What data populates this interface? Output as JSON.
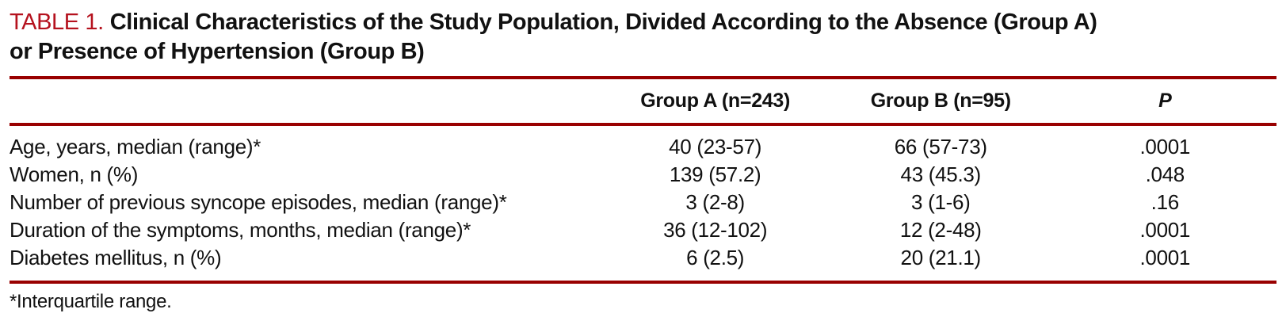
{
  "title": {
    "label": "TABLE 1.",
    "line1": "Clinical Characteristics of the Study Population, Divided According to the Absence (Group A)",
    "line2": "or Presence of Hypertension (Group B)"
  },
  "table": {
    "columns": [
      "",
      "Group A (n=243)",
      "Group B (n=95)",
      "P"
    ],
    "rows": [
      {
        "label": "Age, years, median (range)*",
        "group_a": "40 (23-57)",
        "group_b": "66 (57-73)",
        "p": ".0001"
      },
      {
        "label": "Women, n (%)",
        "group_a": "139 (57.2)",
        "group_b": "43 (45.3)",
        "p": ".048"
      },
      {
        "label": "Number of previous syncope episodes, median (range)*",
        "group_a": "3 (2-8)",
        "group_b": "3 (1-6)",
        "p": ".16"
      },
      {
        "label": "Duration of the symptoms, months, median (range)*",
        "group_a": "36 (12-102)",
        "group_b": "12 (2-48)",
        "p": ".0001"
      },
      {
        "label": "Diabetes mellitus, n (%)",
        "group_a": "6 (2.5)",
        "group_b": "20 (21.1)",
        "p": ".0001"
      }
    ]
  },
  "footnote": "*Interquartile range.",
  "colors": {
    "table_label_red": "#b5121e",
    "rule_red": "#990000",
    "text": "#111111",
    "background": "#ffffff"
  }
}
